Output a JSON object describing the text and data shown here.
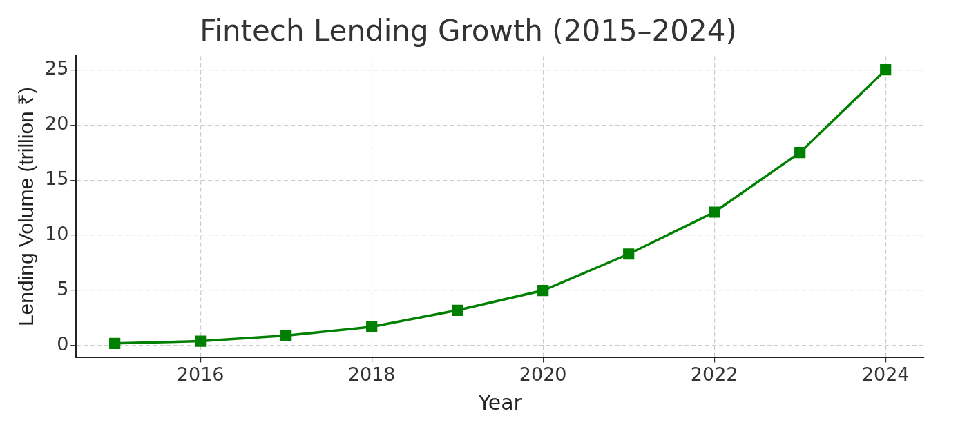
{
  "chart_data": {
    "type": "line",
    "title": "Fintech Lending Growth (2015–2024)",
    "xlabel": "Year",
    "ylabel": "Lending Volume (trillion ₹)",
    "x": [
      2015,
      2016,
      2017,
      2018,
      2019,
      2020,
      2021,
      2022,
      2023,
      2024
    ],
    "series": [
      {
        "color": "#008000",
        "values": [
          0.2,
          0.4,
          0.9,
          1.7,
          3.2,
          5.0,
          8.3,
          12.1,
          17.5,
          25.0
        ]
      }
    ],
    "xlim": [
      2014.55,
      2024.45
    ],
    "xticks": [
      2016,
      2018,
      2020,
      2022,
      2024
    ],
    "ylim": [
      -1.04,
      26.24
    ],
    "yticks": [
      0,
      5,
      10,
      15,
      20,
      25
    ],
    "grid": true,
    "marker": "square",
    "line_style": "solid"
  }
}
